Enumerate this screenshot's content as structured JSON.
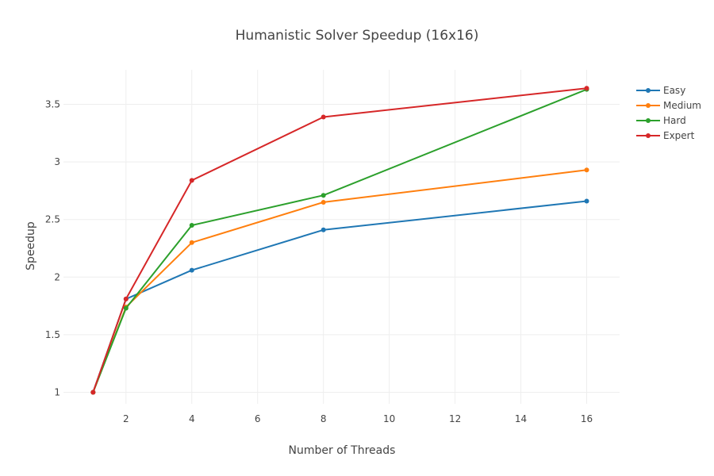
{
  "chart_data": {
    "type": "line",
    "title": "Humanistic Solver Speedup (16x16)",
    "xlabel": "Number of Threads",
    "ylabel": "Speedup",
    "xlim": [
      0.1,
      17
    ],
    "ylim": [
      0.9,
      3.8
    ],
    "x_ticks": [
      2,
      4,
      6,
      8,
      10,
      12,
      14,
      16
    ],
    "y_ticks": [
      1,
      1.5,
      2,
      2.5,
      3,
      3.5
    ],
    "x_tick_labels": [
      "2",
      "4",
      "6",
      "8",
      "10",
      "12",
      "14",
      "16"
    ],
    "y_tick_labels": [
      "1",
      "1.5",
      "2",
      "2.5",
      "3",
      "3.5"
    ],
    "grid": true,
    "legend_position": "top-right",
    "x": [
      1,
      2,
      4,
      8,
      16
    ],
    "series": [
      {
        "name": "Easy",
        "color": "#1f77b4",
        "values": [
          1,
          1.81,
          2.06,
          2.41,
          2.66
        ]
      },
      {
        "name": "Medium",
        "color": "#ff7f0e",
        "values": [
          1,
          1.74,
          2.3,
          2.65,
          2.93
        ]
      },
      {
        "name": "Hard",
        "color": "#2ca02c",
        "values": [
          1,
          1.73,
          2.45,
          2.71,
          3.63
        ]
      },
      {
        "name": "Expert",
        "color": "#d62728",
        "values": [
          1,
          1.81,
          2.84,
          3.39,
          3.64
        ]
      }
    ]
  }
}
